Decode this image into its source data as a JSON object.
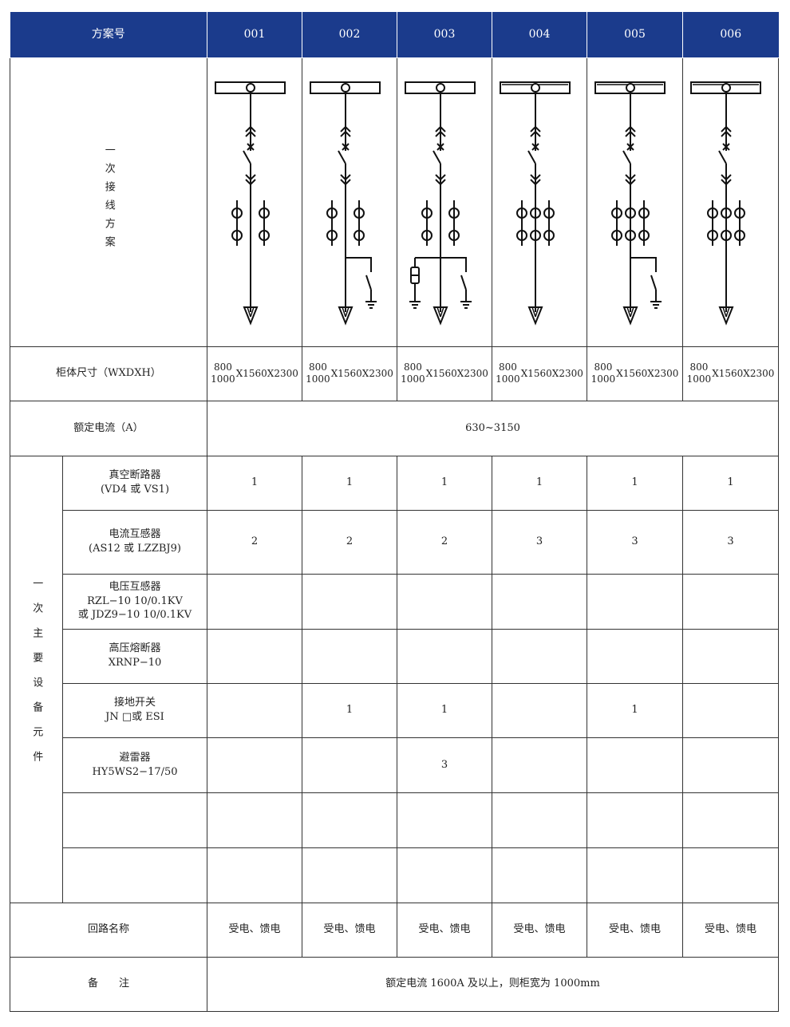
{
  "header": {
    "label": "方案号",
    "schemes": [
      "001",
      "002",
      "003",
      "004",
      "005",
      "006"
    ]
  },
  "colors": {
    "header_bg": "#1b3b8c"
  },
  "wiring": {
    "label": "一次接线方案",
    "diagrams": [
      {
        "ct_per_phase": 2,
        "earthing_switch": false,
        "surge_arrester": false
      },
      {
        "ct_per_phase": 2,
        "earthing_switch": true,
        "surge_arrester": false
      },
      {
        "ct_per_phase": 2,
        "earthing_switch": true,
        "surge_arrester": true
      },
      {
        "ct_per_phase": 3,
        "earthing_switch": false,
        "surge_arrester": false
      },
      {
        "ct_per_phase": 3,
        "earthing_switch": true,
        "surge_arrester": false
      },
      {
        "ct_per_phase": 3,
        "earthing_switch": false,
        "surge_arrester": false
      }
    ]
  },
  "size": {
    "label": "柜体尺寸（WXDXH）",
    "width_top": "800",
    "width_bottom": "1000",
    "rest": "X1560X2300"
  },
  "rated_current": {
    "label": "额定电流（A）",
    "value": "630~3150"
  },
  "equipment": {
    "group_label": "一次主要设备元件",
    "rows": [
      {
        "name": "真空断路器",
        "model": "(VD4 或 VS1)",
        "values": [
          "1",
          "1",
          "1",
          "1",
          "1",
          "1"
        ]
      },
      {
        "name": "电流互感器",
        "model": "(AS12 或 LZZBJ9)",
        "values": [
          "2",
          "2",
          "2",
          "3",
          "3",
          "3"
        ]
      },
      {
        "name": "电压互感器",
        "model": "RZL−10 10/0.1KV\n或 JDZ9−10 10/0.1KV",
        "values": [
          "",
          "",
          "",
          "",
          "",
          ""
        ]
      },
      {
        "name": "高压熔断器",
        "model": "XRNP−10",
        "values": [
          "",
          "",
          "",
          "",
          "",
          ""
        ]
      },
      {
        "name": "接地开关",
        "model": "JN □或 ESI",
        "values": [
          "",
          "1",
          "1",
          "",
          "1",
          ""
        ]
      },
      {
        "name": "避雷器",
        "model": "HY5WS2−17/50",
        "values": [
          "",
          "",
          "3",
          "",
          "",
          ""
        ]
      },
      {
        "name": "",
        "model": "",
        "values": [
          "",
          "",
          "",
          "",
          "",
          ""
        ]
      },
      {
        "name": "",
        "model": "",
        "values": [
          "",
          "",
          "",
          "",
          "",
          ""
        ]
      }
    ]
  },
  "circuit": {
    "label": "回路名称",
    "values": [
      "受电、馈电",
      "受电、馈电",
      "受电、馈电",
      "受电、馈电",
      "受电、馈电",
      "受电、馈电"
    ]
  },
  "remark": {
    "label": "备　　注",
    "value": "额定电流 1600A 及以上，则柜宽为 1000mm"
  }
}
